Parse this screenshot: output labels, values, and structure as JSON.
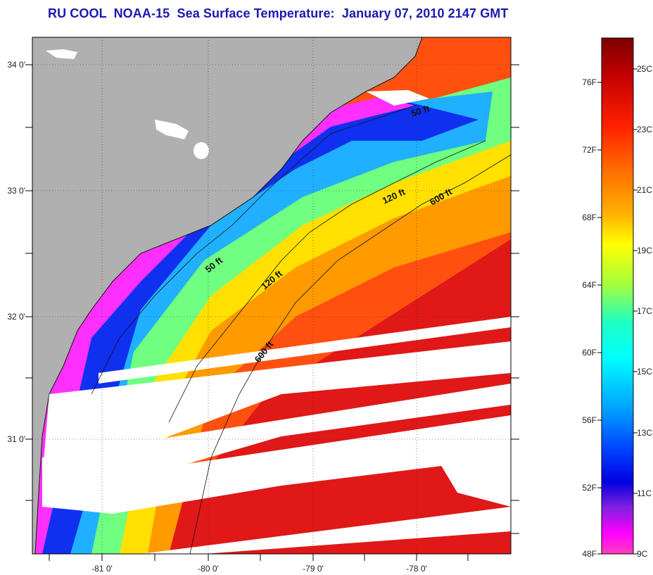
{
  "title": "RU COOL  NOAA-15  Sea Surface Temperature:  January 07, 2010 2147 GMT",
  "colors": {
    "title": "#1a1ab0",
    "land": "#b0b0b0",
    "cloud": "#ffffff"
  },
  "map": {
    "lat_ticks": [
      "34 0'",
      "33 0'",
      "32 0'",
      "31 0'"
    ],
    "lon_ticks": [
      "-81 0'",
      "-80 0'",
      "-79 0'",
      "-78 0'"
    ],
    "contour_labels": [
      "50 ft",
      "50 ft",
      "120 ft",
      "120 ft",
      "600 ft",
      "600 ft"
    ]
  },
  "colorbar": {
    "fahrenheit_labels": [
      "76F",
      "72F",
      "68F",
      "64F",
      "60F",
      "56F",
      "52F",
      "48F"
    ],
    "celsius_labels": [
      "25C",
      "23C",
      "21C",
      "19C",
      "17C",
      "15C",
      "13C",
      "11C",
      "9C"
    ],
    "gradient_colors": [
      "#7a0000",
      "#c00000",
      "#ff2000",
      "#ff7000",
      "#ffb000",
      "#ffff00",
      "#a0ff40",
      "#20ffc0",
      "#00ffff",
      "#00a0ff",
      "#0040ff",
      "#0000e0",
      "#8020e0",
      "#ff00ff",
      "#ff40c0"
    ]
  }
}
